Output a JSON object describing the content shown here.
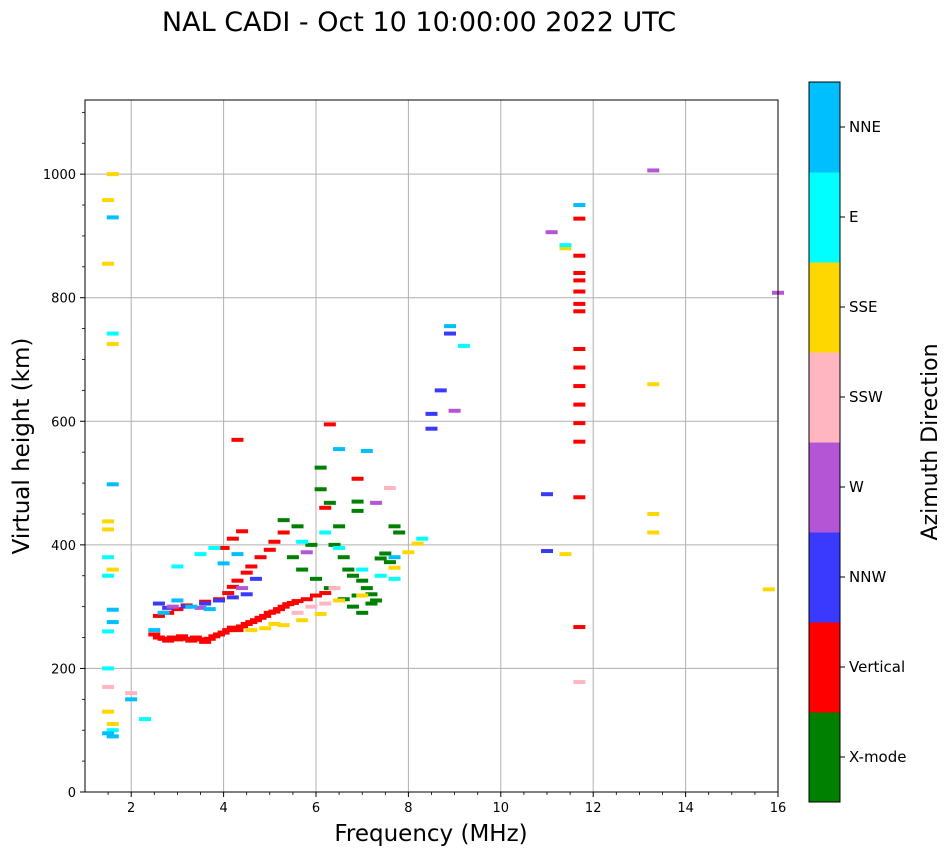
{
  "chart_data": {
    "type": "scatter",
    "title": "NAL CADI - Oct 10 10:00:00 2022 UTC",
    "xlabel": "Frequency (MHz)",
    "ylabel": "Virtual height (km)",
    "xlim": [
      1,
      16
    ],
    "ylim": [
      0,
      1120
    ],
    "xticks": [
      2,
      4,
      6,
      8,
      10,
      12,
      14,
      16
    ],
    "yticks": [
      0,
      200,
      400,
      600,
      800,
      1000
    ],
    "grid": true,
    "colorbar": {
      "label": "Azimuth Direction",
      "categories": [
        {
          "name": "X-mode",
          "color": "#008000"
        },
        {
          "name": "Vertical",
          "color": "#ff0000"
        },
        {
          "name": "NNW",
          "color": "#3a3aff"
        },
        {
          "name": "W",
          "color": "#b455d6"
        },
        {
          "name": "SSW",
          "color": "#ffb6c1"
        },
        {
          "name": "SSE",
          "color": "#ffd700"
        },
        {
          "name": "E",
          "color": "#00ffff"
        },
        {
          "name": "NNE",
          "color": "#00bfff"
        }
      ]
    },
    "series": [
      {
        "name": "Vertical",
        "points": [
          [
            2.5,
            255
          ],
          [
            2.6,
            250
          ],
          [
            2.7,
            248
          ],
          [
            2.8,
            245
          ],
          [
            2.9,
            250
          ],
          [
            3.0,
            247
          ],
          [
            3.1,
            252
          ],
          [
            3.2,
            248
          ],
          [
            3.3,
            245
          ],
          [
            3.4,
            250
          ],
          [
            3.5,
            247
          ],
          [
            3.6,
            243
          ],
          [
            3.7,
            248
          ],
          [
            3.8,
            252
          ],
          [
            3.9,
            255
          ],
          [
            4.0,
            258
          ],
          [
            4.1,
            262
          ],
          [
            4.2,
            266
          ],
          [
            4.3,
            262
          ],
          [
            4.4,
            268
          ],
          [
            4.5,
            272
          ],
          [
            4.6,
            275
          ],
          [
            4.7,
            278
          ],
          [
            4.8,
            282
          ],
          [
            4.9,
            285
          ],
          [
            5.0,
            290
          ],
          [
            5.1,
            292
          ],
          [
            5.2,
            296
          ],
          [
            5.3,
            300
          ],
          [
            5.4,
            304
          ],
          [
            5.5,
            306
          ],
          [
            5.6,
            309
          ],
          [
            5.8,
            312
          ],
          [
            6.0,
            318
          ],
          [
            6.2,
            322
          ],
          [
            2.6,
            285
          ],
          [
            2.8,
            290
          ],
          [
            3.0,
            296
          ],
          [
            3.2,
            302
          ],
          [
            3.6,
            308
          ],
          [
            3.9,
            312
          ],
          [
            4.1,
            322
          ],
          [
            4.2,
            332
          ],
          [
            4.3,
            342
          ],
          [
            4.5,
            355
          ],
          [
            4.6,
            365
          ],
          [
            4.8,
            380
          ],
          [
            5.0,
            392
          ],
          [
            5.1,
            405
          ],
          [
            5.3,
            420
          ],
          [
            4.0,
            395
          ],
          [
            4.2,
            410
          ],
          [
            4.4,
            422
          ],
          [
            6.2,
            460
          ],
          [
            6.3,
            595
          ],
          [
            4.3,
            570
          ],
          [
            6.9,
            507
          ],
          [
            11.7,
            928
          ],
          [
            11.7,
            868
          ],
          [
            11.7,
            840
          ],
          [
            11.7,
            828
          ],
          [
            11.7,
            810
          ],
          [
            11.7,
            790
          ],
          [
            11.7,
            778
          ],
          [
            11.7,
            717
          ],
          [
            11.7,
            687
          ],
          [
            11.7,
            657
          ],
          [
            11.7,
            627
          ],
          [
            11.7,
            597
          ],
          [
            11.7,
            567
          ],
          [
            11.7,
            477
          ],
          [
            11.7,
            267
          ]
        ]
      },
      {
        "name": "X-mode",
        "points": [
          [
            5.3,
            440
          ],
          [
            5.6,
            430
          ],
          [
            5.9,
            400
          ],
          [
            6.1,
            490
          ],
          [
            6.1,
            525
          ],
          [
            6.3,
            468
          ],
          [
            6.5,
            430
          ],
          [
            6.6,
            380
          ],
          [
            6.7,
            360
          ],
          [
            6.8,
            350
          ],
          [
            6.9,
            470
          ],
          [
            6.9,
            455
          ],
          [
            7.0,
            342
          ],
          [
            7.1,
            330
          ],
          [
            7.2,
            320
          ],
          [
            7.3,
            310
          ],
          [
            7.4,
            378
          ],
          [
            7.5,
            386
          ],
          [
            7.6,
            372
          ],
          [
            7.7,
            430
          ],
          [
            7.8,
            420
          ],
          [
            6.4,
            400
          ],
          [
            6.9,
            318
          ],
          [
            7.2,
            305
          ],
          [
            5.5,
            380
          ],
          [
            5.7,
            360
          ],
          [
            6.0,
            345
          ],
          [
            6.3,
            330
          ],
          [
            6.6,
            312
          ],
          [
            6.8,
            300
          ],
          [
            7.0,
            290
          ]
        ]
      },
      {
        "name": "NNW",
        "points": [
          [
            2.6,
            305
          ],
          [
            2.8,
            298
          ],
          [
            3.2,
            300
          ],
          [
            3.6,
            305
          ],
          [
            3.9,
            310
          ],
          [
            4.2,
            315
          ],
          [
            4.5,
            320
          ],
          [
            4.7,
            345
          ],
          [
            8.5,
            612
          ],
          [
            8.5,
            588
          ],
          [
            8.7,
            650
          ],
          [
            8.9,
            742
          ],
          [
            11.0,
            482
          ],
          [
            11.0,
            390
          ]
        ]
      },
      {
        "name": "W",
        "points": [
          [
            2.9,
            300
          ],
          [
            3.5,
            298
          ],
          [
            4.4,
            330
          ],
          [
            5.8,
            388
          ],
          [
            7.3,
            468
          ],
          [
            9.0,
            617
          ],
          [
            11.1,
            906
          ],
          [
            13.3,
            1006
          ],
          [
            16.0,
            808
          ]
        ]
      },
      {
        "name": "SSW",
        "points": [
          [
            2.0,
            160
          ],
          [
            1.5,
            170
          ],
          [
            5.6,
            290
          ],
          [
            5.9,
            300
          ],
          [
            6.2,
            305
          ],
          [
            6.4,
            330
          ],
          [
            7.6,
            492
          ],
          [
            11.7,
            178
          ]
        ]
      },
      {
        "name": "SSE",
        "points": [
          [
            1.6,
            1000
          ],
          [
            1.5,
            958
          ],
          [
            1.5,
            855
          ],
          [
            1.6,
            725
          ],
          [
            1.5,
            438
          ],
          [
            1.5,
            425
          ],
          [
            1.6,
            360
          ],
          [
            1.5,
            130
          ],
          [
            1.6,
            110
          ],
          [
            4.6,
            262
          ],
          [
            4.9,
            265
          ],
          [
            5.1,
            272
          ],
          [
            5.3,
            270
          ],
          [
            5.7,
            278
          ],
          [
            6.1,
            288
          ],
          [
            6.5,
            310
          ],
          [
            7.0,
            318
          ],
          [
            7.7,
            363
          ],
          [
            8.0,
            388
          ],
          [
            8.2,
            402
          ],
          [
            11.4,
            880
          ],
          [
            11.4,
            385
          ],
          [
            13.3,
            660
          ],
          [
            13.3,
            450
          ],
          [
            13.3,
            420
          ],
          [
            15.8,
            328
          ]
        ]
      },
      {
        "name": "E",
        "points": [
          [
            1.6,
            742
          ],
          [
            1.5,
            380
          ],
          [
            1.5,
            350
          ],
          [
            1.5,
            260
          ],
          [
            1.5,
            200
          ],
          [
            1.6,
            100
          ],
          [
            2.3,
            118
          ],
          [
            3.0,
            365
          ],
          [
            3.5,
            385
          ],
          [
            3.8,
            395
          ],
          [
            5.7,
            405
          ],
          [
            6.2,
            420
          ],
          [
            6.5,
            395
          ],
          [
            7.0,
            360
          ],
          [
            7.4,
            350
          ],
          [
            7.7,
            345
          ],
          [
            8.3,
            410
          ],
          [
            9.2,
            722
          ],
          [
            11.4,
            885
          ]
        ]
      },
      {
        "name": "NNE",
        "points": [
          [
            1.6,
            930
          ],
          [
            1.6,
            498
          ],
          [
            1.6,
            295
          ],
          [
            1.6,
            275
          ],
          [
            1.5,
            95
          ],
          [
            1.6,
            90
          ],
          [
            2.0,
            150
          ],
          [
            2.5,
            262
          ],
          [
            2.7,
            290
          ],
          [
            3.0,
            310
          ],
          [
            3.3,
            300
          ],
          [
            3.7,
            296
          ],
          [
            4.0,
            370
          ],
          [
            4.3,
            385
          ],
          [
            6.5,
            555
          ],
          [
            7.1,
            552
          ],
          [
            7.7,
            380
          ],
          [
            8.9,
            754
          ],
          [
            11.7,
            950
          ]
        ]
      }
    ]
  }
}
